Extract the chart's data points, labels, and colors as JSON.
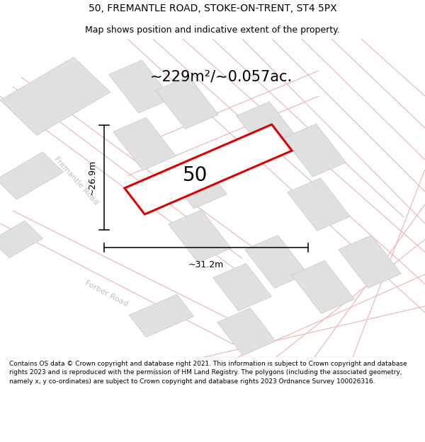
{
  "title_line1": "50, FREMANTLE ROAD, STOKE-ON-TRENT, ST4 5PX",
  "title_line2": "Map shows position and indicative extent of the property.",
  "area_text": "~229m²/~0.057ac.",
  "property_number": "50",
  "dim_width": "~31.2m",
  "dim_height": "~26.9m",
  "footer_text": "Contains OS data © Crown copyright and database right 2021. This information is subject to Crown copyright and database rights 2023 and is reproduced with the permission of HM Land Registry. The polygons (including the associated geometry, namely x, y co-ordinates) are subject to Crown copyright and database rights 2023 Ordnance Survey 100026316.",
  "map_bg": "#ffffff",
  "road_color": "#f0b8b8",
  "road_color2": "#e8a8a8",
  "building_color": "#e0e0e0",
  "building_edge": "#c8c8c8",
  "property_fill": "#ffffff",
  "property_edge": "#dd0000",
  "road_label_color": "#c0c0c0",
  "dim_color": "#111111",
  "title_fontsize": 10,
  "subtitle_fontsize": 9,
  "area_fontsize": 15,
  "label_fontsize": 9,
  "footer_fontsize": 6.5,
  "property_lw": 2.2,
  "number_fontsize": 20
}
